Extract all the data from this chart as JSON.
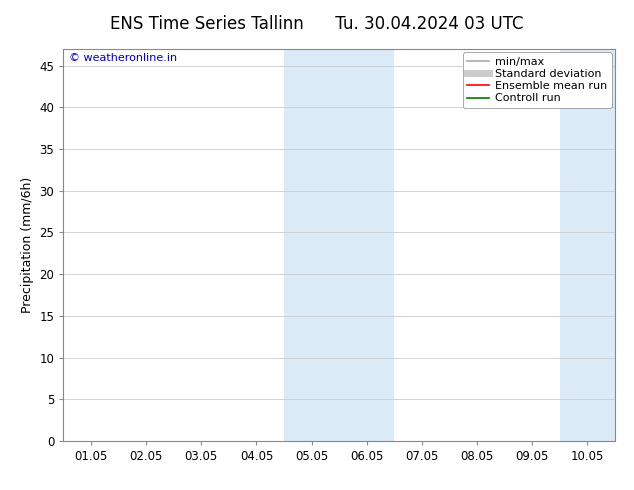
{
  "title": "ENS Time Series Tallinn      Tu. 30.04.2024 03 UTC",
  "ylabel": "Precipitation (mm/6h)",
  "yticks": [
    0,
    5,
    10,
    15,
    20,
    25,
    30,
    35,
    40,
    45
  ],
  "ylim": [
    0,
    47
  ],
  "xtick_labels": [
    "01.05",
    "02.05",
    "03.05",
    "04.05",
    "05.05",
    "06.05",
    "07.05",
    "08.05",
    "09.05",
    "10.05"
  ],
  "xtick_positions": [
    0,
    1,
    2,
    3,
    4,
    5,
    6,
    7,
    8,
    9
  ],
  "xlim": [
    -0.5,
    9.5
  ],
  "shaded_regions": [
    {
      "xmin": 3.5,
      "xmax": 4.5,
      "color": "#daeaf7"
    },
    {
      "xmin": 4.5,
      "xmax": 5.5,
      "color": "#daeaf7"
    },
    {
      "xmin": 8.5,
      "xmax": 9.5,
      "color": "#daeaf7"
    }
  ],
  "watermark_text": "© weatheronline.in",
  "watermark_color": "#0000cc",
  "legend_entries": [
    {
      "label": "min/max",
      "color": "#aaaaaa",
      "lw": 1.2
    },
    {
      "label": "Standard deviation",
      "color": "#cccccc",
      "lw": 5
    },
    {
      "label": "Ensemble mean run",
      "color": "#ff0000",
      "lw": 1.2
    },
    {
      "label": "Controll run",
      "color": "#007700",
      "lw": 1.2
    }
  ],
  "bg_color": "#ffffff",
  "plot_bg_color": "#ffffff",
  "grid_color": "#cccccc",
  "spine_color": "#888888",
  "tick_label_fontsize": 8.5,
  "ylabel_fontsize": 9,
  "title_fontsize": 12,
  "legend_fontsize": 8
}
